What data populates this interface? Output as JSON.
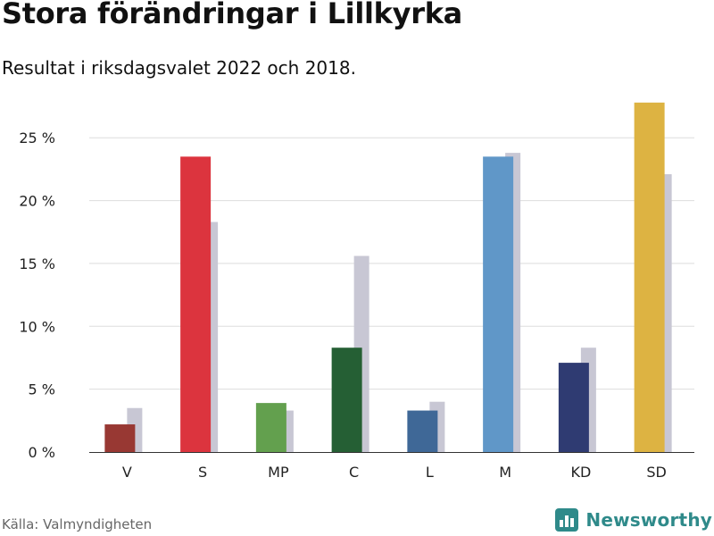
{
  "header": {
    "title": "Stora förändringar i Lillkyrka",
    "subtitle": "Resultat i riksdagsvalet 2022 och 2018."
  },
  "footer": {
    "source": "Källa: Valmyndigheten",
    "brand": "Newsworthy",
    "brand_icon": "bar-chart-logo-icon",
    "brand_color": "#2f8a8a"
  },
  "chart_data": {
    "type": "bar",
    "categories": [
      "V",
      "S",
      "MP",
      "C",
      "L",
      "M",
      "KD",
      "SD"
    ],
    "series": [
      {
        "values": [
          2.2,
          23.5,
          3.9,
          8.3,
          3.3,
          23.5,
          7.1,
          27.8
        ],
        "colors": [
          "#983833",
          "#dc343e",
          "#63a04e",
          "#255f34",
          "#3f6897",
          "#6097c8",
          "#2f3b72",
          "#ddb342"
        ]
      },
      {
        "values": [
          3.5,
          18.3,
          3.3,
          15.6,
          4.0,
          23.8,
          8.3,
          22.1
        ],
        "color": "#c8c7d4"
      }
    ],
    "ylim": [
      0,
      28
    ],
    "yticks": [
      0,
      5,
      10,
      15,
      20,
      25
    ],
    "ytick_labels": [
      "0 %",
      "5 %",
      "10 %",
      "15 %",
      "20 %",
      "25 %"
    ],
    "grid": true,
    "title": "",
    "xlabel": "",
    "ylabel": ""
  }
}
